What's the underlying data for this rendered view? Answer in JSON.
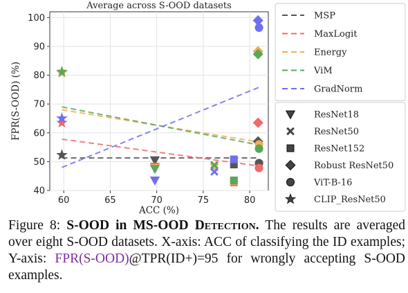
{
  "chart_data": {
    "type": "scatter",
    "title": "Average across S-OOD datasets",
    "xlabel": "ACC (%)",
    "ylabel": "FPR(S-OOD) (%)",
    "xlim": [
      58.5,
      82
    ],
    "ylim": [
      40,
      102
    ],
    "xticks": [
      "60",
      "65",
      "70",
      "75",
      "80"
    ],
    "yticks": [
      "40",
      "50",
      "60",
      "70",
      "80",
      "90",
      "100"
    ],
    "grid": true,
    "method_legend_position": "top-right",
    "model_legend_position": "bottom-right",
    "methods": [
      {
        "name": "MSP",
        "color": "#555555",
        "line": {
          "x": [
            59.8,
            81
          ],
          "y": [
            51.3,
            51.3
          ]
        }
      },
      {
        "name": "MaxLogit",
        "color": "#f06a6a",
        "line": {
          "x": [
            59.8,
            81
          ],
          "y": [
            57.8,
            48.5
          ]
        }
      },
      {
        "name": "Energy",
        "color": "#f5ac52",
        "line": {
          "x": [
            59.8,
            81
          ],
          "y": [
            68.0,
            56.8
          ]
        }
      },
      {
        "name": "ViM",
        "color": "#58a858",
        "line": {
          "x": [
            59.8,
            81
          ],
          "y": [
            69.0,
            55.8
          ]
        }
      },
      {
        "name": "GradNorm",
        "color": "#6f6ff0",
        "line": {
          "x": [
            59.8,
            81
          ],
          "y": [
            48.0,
            75.8
          ]
        }
      }
    ],
    "models": [
      {
        "name": "ResNet18",
        "marker": "triangle-down"
      },
      {
        "name": "ResNet50",
        "marker": "x"
      },
      {
        "name": "ResNet152",
        "marker": "square"
      },
      {
        "name": "Robust ResNet50",
        "marker": "diamond"
      },
      {
        "name": "ViT-B-16",
        "marker": "circle"
      },
      {
        "name": "CLIP_ResNet50",
        "marker": "star"
      }
    ],
    "points": [
      {
        "model": "CLIP_ResNet50",
        "method": "MSP",
        "x": 59.8,
        "y": 52.3
      },
      {
        "model": "CLIP_ResNet50",
        "method": "MaxLogit",
        "x": 59.8,
        "y": 63.5
      },
      {
        "model": "CLIP_ResNet50",
        "method": "Energy",
        "x": 59.8,
        "y": 80.8
      },
      {
        "model": "CLIP_ResNet50",
        "method": "ViM",
        "x": 59.8,
        "y": 81.2
      },
      {
        "model": "CLIP_ResNet50",
        "method": "GradNorm",
        "x": 59.8,
        "y": 65.0
      },
      {
        "model": "ResNet18",
        "method": "MSP",
        "x": 69.8,
        "y": 50.5
      },
      {
        "model": "ResNet18",
        "method": "MaxLogit",
        "x": 69.8,
        "y": 48.3
      },
      {
        "model": "ResNet18",
        "method": "Energy",
        "x": 69.8,
        "y": 47.8
      },
      {
        "model": "ResNet18",
        "method": "ViM",
        "x": 69.8,
        "y": 47.5
      },
      {
        "model": "ResNet18",
        "method": "GradNorm",
        "x": 69.8,
        "y": 43.5
      },
      {
        "model": "ResNet50",
        "method": "MSP",
        "x": 76.2,
        "y": 48.8
      },
      {
        "model": "ResNet50",
        "method": "MaxLogit",
        "x": 76.2,
        "y": 48.2
      },
      {
        "model": "ResNet50",
        "method": "Energy",
        "x": 76.2,
        "y": 48.0
      },
      {
        "model": "ResNet50",
        "method": "ViM",
        "x": 76.2,
        "y": 48.8
      },
      {
        "model": "ResNet50",
        "method": "GradNorm",
        "x": 76.2,
        "y": 46.5
      },
      {
        "model": "ResNet152",
        "method": "MSP",
        "x": 78.3,
        "y": 49.0
      },
      {
        "model": "ResNet152",
        "method": "MaxLogit",
        "x": 78.3,
        "y": 42.8
      },
      {
        "model": "ResNet152",
        "method": "Energy",
        "x": 78.3,
        "y": 43.3
      },
      {
        "model": "ResNet152",
        "method": "ViM",
        "x": 78.3,
        "y": 43.5
      },
      {
        "model": "ResNet152",
        "method": "GradNorm",
        "x": 78.3,
        "y": 50.8
      },
      {
        "model": "Robust ResNet50",
        "method": "MSP",
        "x": 80.9,
        "y": 57.0
      },
      {
        "model": "Robust ResNet50",
        "method": "MaxLogit",
        "x": 80.9,
        "y": 63.5
      },
      {
        "model": "Robust ResNet50",
        "method": "Energy",
        "x": 80.9,
        "y": 88.3
      },
      {
        "model": "Robust ResNet50",
        "method": "ViM",
        "x": 80.9,
        "y": 87.3
      },
      {
        "model": "Robust ResNet50",
        "method": "GradNorm",
        "x": 80.9,
        "y": 99.0
      },
      {
        "model": "ViT-B-16",
        "method": "MSP",
        "x": 81.0,
        "y": 49.5
      },
      {
        "model": "ViT-B-16",
        "method": "MaxLogit",
        "x": 81.0,
        "y": 47.8
      },
      {
        "model": "ViT-B-16",
        "method": "Energy",
        "x": 81.0,
        "y": 56.0
      },
      {
        "model": "ViT-B-16",
        "method": "ViM",
        "x": 81.0,
        "y": 54.5
      },
      {
        "model": "ViT-B-16",
        "method": "GradNorm",
        "x": 81.0,
        "y": 96.5
      }
    ]
  },
  "caption": {
    "label": "Figure 8:",
    "bold_text": "S-OOD in MS-OOD ",
    "smallcaps_text": "Detection.",
    "text_1": " The results are averaged over eight S-OOD datasets. X-axis: ACC of classifying the ID examples; Y-axis: ",
    "highlight_text": "FPR(S-OOD)",
    "text_2": "@TPR(ID+)=95 for wrongly accepting S-OOD examples."
  }
}
